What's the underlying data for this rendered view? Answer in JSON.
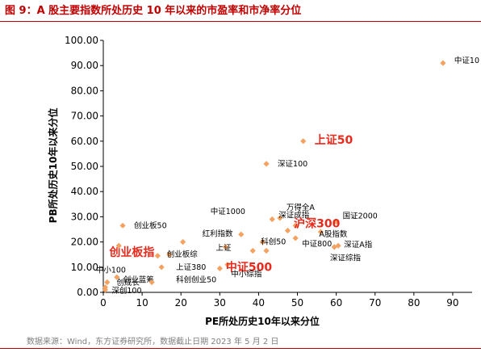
{
  "title": "图 9：A 股主要指数所处历史 10 年以来的市盈率和市净率分位",
  "source": "数据来源：Wind，东方证券研究所，数据截止日期 2023 年 5 月 2 日",
  "chart_data": {
    "type": "scatter",
    "xlabel": "PE所处历史10年以来分位",
    "ylabel": "PB所处历史10年以来分位",
    "xlim": [
      0,
      95
    ],
    "ylim": [
      0,
      100
    ],
    "xticks": [
      0,
      10,
      20,
      30,
      40,
      50,
      60,
      70,
      80,
      90
    ],
    "yticks": [
      "0.00",
      "10.00",
      "20.00",
      "30.00",
      "40.00",
      "50.00",
      "60.00",
      "70.00",
      "80.00",
      "90.00",
      "100.00"
    ],
    "grid": false,
    "marker_color": "#f4a261",
    "highlight_color": "#e8291c",
    "points": [
      {
        "name": "中证10",
        "x": 87.5,
        "y": 91.0,
        "highlight": false
      },
      {
        "name": "上证50",
        "x": 51.5,
        "y": 60.0,
        "highlight": true
      },
      {
        "name": "深证100",
        "x": 42.0,
        "y": 51.0,
        "highlight": false
      },
      {
        "name": "万得全A",
        "x": 45.5,
        "y": 29.5,
        "highlight": false
      },
      {
        "name": "深证成指",
        "x": 43.5,
        "y": 29.0,
        "highlight": false
      },
      {
        "name": "国证2000",
        "x": 60.0,
        "y": 28.0,
        "highlight": false
      },
      {
        "name": "沪深300",
        "x": 49.5,
        "y": 26.5,
        "highlight": true
      },
      {
        "name": "中证500",
        "x": 32.0,
        "y": 11.0,
        "highlight": true
      },
      {
        "name": "创业板指",
        "x": 14.0,
        "y": 14.5,
        "highlight": true
      },
      {
        "name": "中证1000",
        "x": 35.5,
        "y": 23.0,
        "highlight": false
      },
      {
        "name": "中证800",
        "x": 49.5,
        "y": 21.5,
        "highlight": false
      },
      {
        "name": "A股指数",
        "x": 56.0,
        "y": 24.0,
        "highlight": false
      },
      {
        "name": "上证",
        "x": 31.5,
        "y": 18.0,
        "highlight": false
      },
      {
        "name": "科创50",
        "x": 41.0,
        "y": 20.0,
        "highlight": false
      },
      {
        "name": "深证A指",
        "x": 59.5,
        "y": 18.0,
        "highlight": false
      },
      {
        "name": "深证综指",
        "x": 60.5,
        "y": 18.5,
        "highlight": false
      },
      {
        "name": "红利指数",
        "x": 20.5,
        "y": 20.0,
        "highlight": false
      },
      {
        "name": "创业板综",
        "x": 17.0,
        "y": 15.0,
        "highlight": false
      },
      {
        "name": "创业板50",
        "x": 5.0,
        "y": 26.5,
        "highlight": false
      },
      {
        "name": "中小综指",
        "x": 30.0,
        "y": 9.5,
        "highlight": false
      },
      {
        "name": "上证380",
        "x": 15.0,
        "y": 10.0,
        "highlight": false
      },
      {
        "name": "中小100",
        "x": 3.5,
        "y": 6.0,
        "highlight": false
      },
      {
        "name": "创业蓝筹",
        "x": 1.0,
        "y": 4.0,
        "highlight": false
      },
      {
        "name": "科创创业50",
        "x": 12.5,
        "y": 4.0,
        "highlight": false
      },
      {
        "name": "创成长",
        "x": 0.5,
        "y": 2.0,
        "highlight": false
      },
      {
        "name": "深创100",
        "x": 0.5,
        "y": 1.0,
        "highlight": false
      },
      {
        "name": "",
        "x": 4.0,
        "y": 18.5,
        "highlight": false
      },
      {
        "name": "",
        "x": 38.5,
        "y": 16.5,
        "highlight": false
      },
      {
        "name": "",
        "x": 42.0,
        "y": 16.5,
        "highlight": false
      },
      {
        "name": "",
        "x": 47.5,
        "y": 24.5,
        "highlight": false
      }
    ]
  }
}
